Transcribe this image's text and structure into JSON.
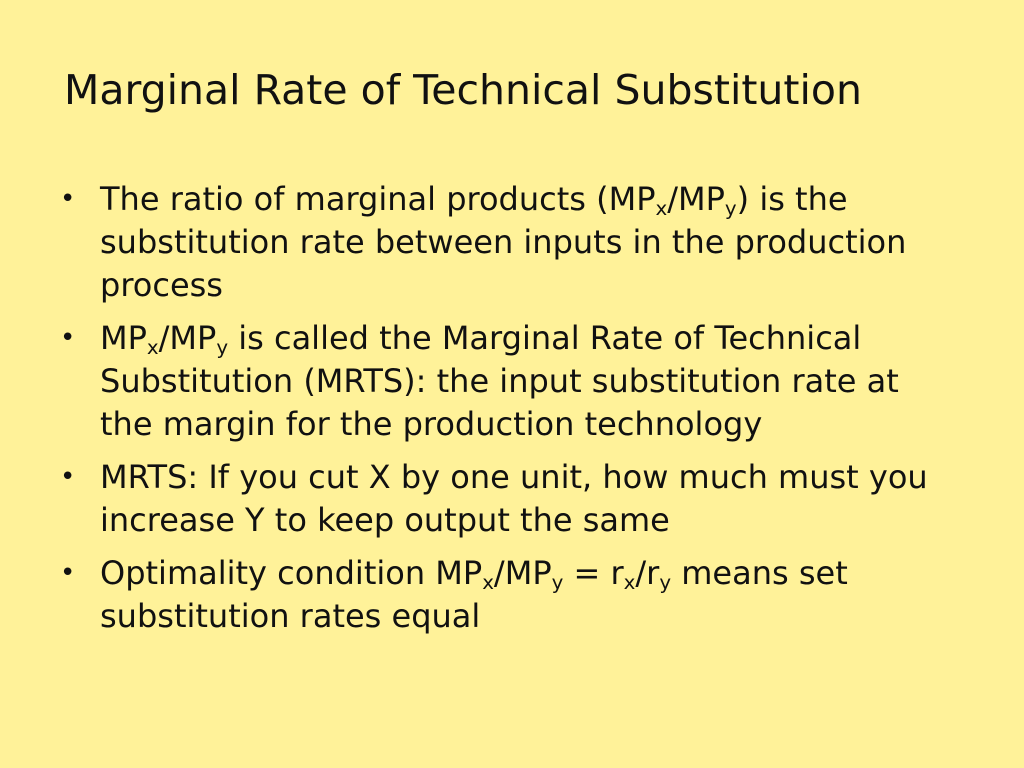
{
  "slide": {
    "title": "Marginal Rate of Technical Substitution",
    "bullet_symbol": "•",
    "bullets": [
      {
        "segments": [
          {
            "text": "The ratio of marginal products (MP"
          },
          {
            "text": "x",
            "sub": true
          },
          {
            "text": "/MP"
          },
          {
            "text": "y",
            "sub": true
          },
          {
            "text": ") is the substitution rate between inputs in the production process"
          }
        ]
      },
      {
        "segments": [
          {
            "text": "MP"
          },
          {
            "text": "x",
            "sub": true
          },
          {
            "text": "/MP"
          },
          {
            "text": "y",
            "sub": true
          },
          {
            "text": " is called the Marginal Rate of Technical Substitution (MRTS): the input substitution rate at the margin for the production technology"
          }
        ]
      },
      {
        "segments": [
          {
            "text": "MRTS: If you cut X by one unit, how much must you increase Y to keep output the same"
          }
        ]
      },
      {
        "segments": [
          {
            "text": "Optimality condition MP"
          },
          {
            "text": "x",
            "sub": true
          },
          {
            "text": "/MP"
          },
          {
            "text": "y",
            "sub": true
          },
          {
            "text": " = r"
          },
          {
            "text": "x",
            "sub": true
          },
          {
            "text": "/r"
          },
          {
            "text": "y",
            "sub": true
          },
          {
            "text": " means set substitution rates equal"
          }
        ]
      }
    ]
  },
  "colors": {
    "background": "#fff299",
    "text": "#111111"
  }
}
